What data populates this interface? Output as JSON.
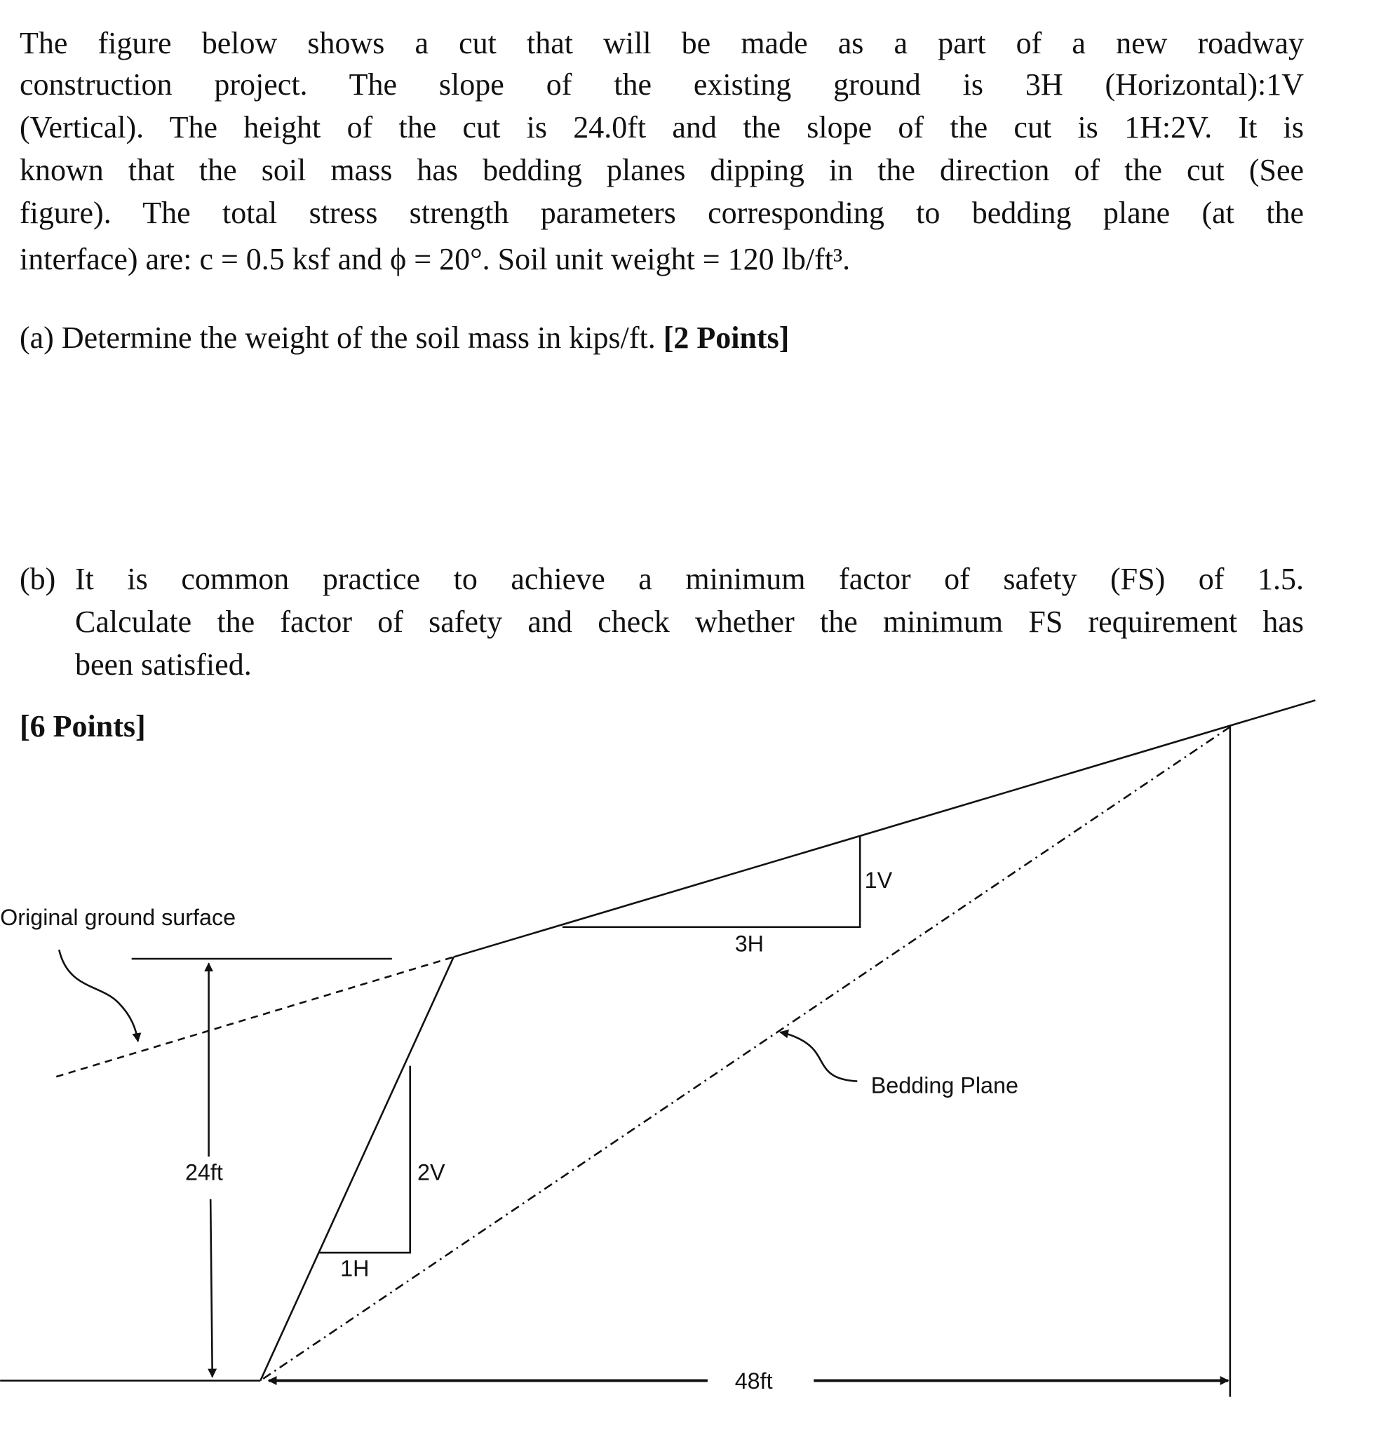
{
  "intro_lines": [
    "The figure below shows a cut that will be made as a part of a new roadway",
    "construction project.  The slope of the existing ground is 3H (Horizontal):1V",
    "(Vertical).  The height of the cut is 24.0ft and the slope of the cut is 1H:2V.  It is",
    "known that the soil mass has bedding planes dipping in the direction of the cut (See",
    "figure).  The total stress strength parameters corresponding to bedding plane (at the",
    "interface) are:  c = 0.5 ksf and ϕ = 20°.   Soil unit weight = 120 lb/ft³."
  ],
  "part_a": {
    "label": "(a)",
    "text": "Determine the weight of the soil mass in kips/ft.",
    "points": "[2 Points]"
  },
  "part_b": {
    "label": "(b)",
    "lines": [
      "It is common practice to achieve a minimum factor of safety (FS) of 1.5.",
      "Calculate the factor of safety and check whether the minimum FS requirement has",
      "been satisfied."
    ],
    "points": "[6 Points]"
  },
  "figure": {
    "original_ground_label": "Original ground surface",
    "bedding_plane_label": "Bedding Plane",
    "slope_v_label": "1V",
    "slope_h_label": "3H",
    "cut_v_label": "2V",
    "cut_h_label": "1H",
    "height_label": "24ft",
    "width_label": "48ft"
  }
}
